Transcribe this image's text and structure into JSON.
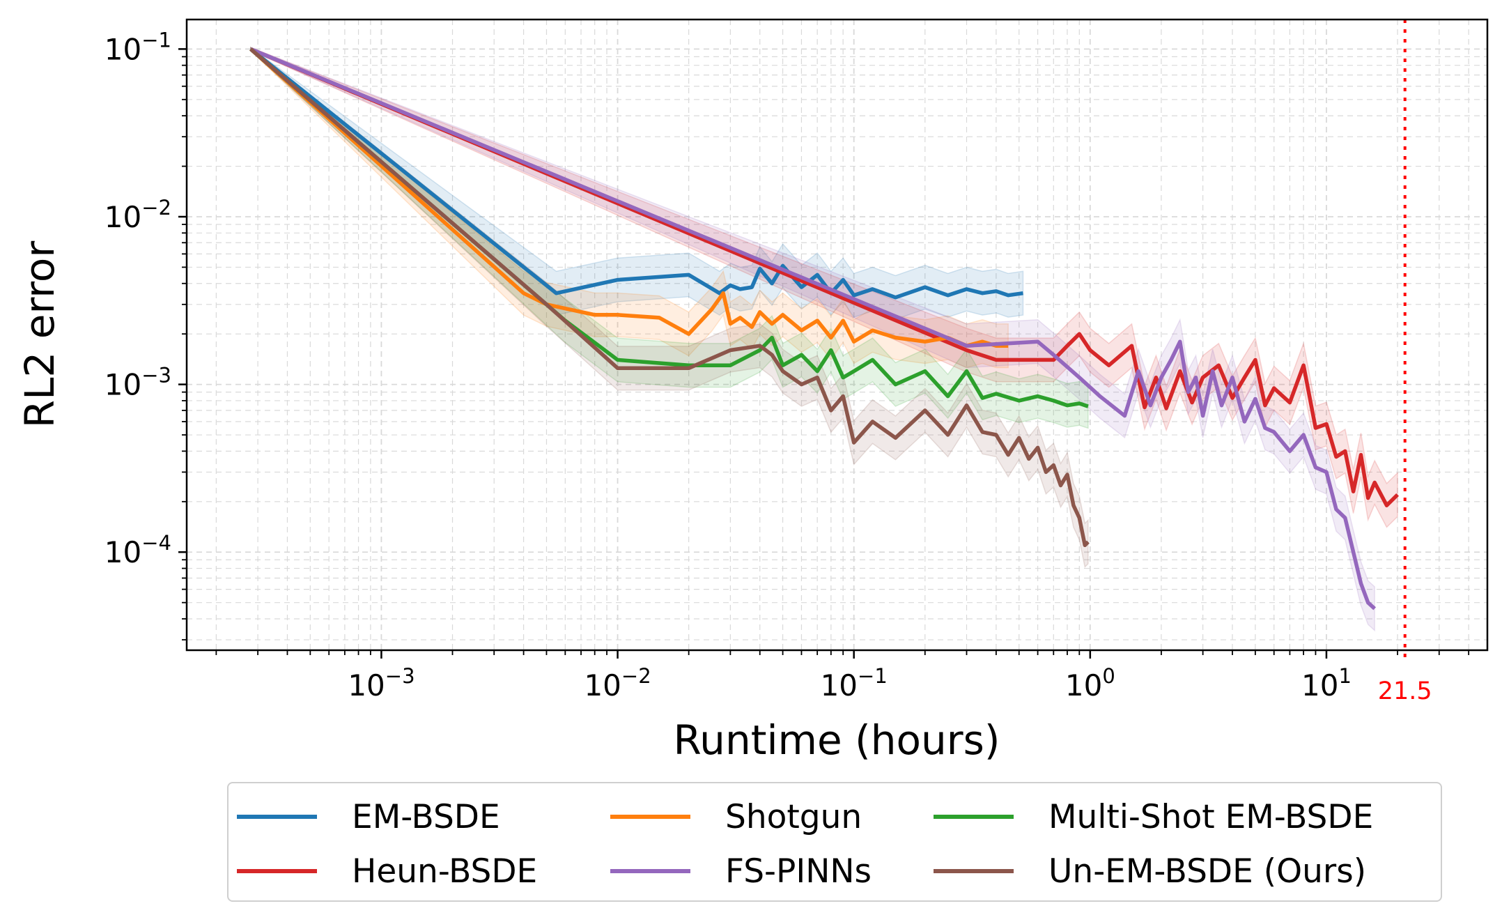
{
  "chart_data": {
    "type": "line",
    "xlabel": "Runtime (hours)",
    "ylabel": "RL2 error",
    "x_scale": "log",
    "y_scale": "log",
    "xlim": [
      0.00015,
      48
    ],
    "ylim": [
      2.6e-05,
      0.15
    ],
    "grid": true,
    "x_ticks": [
      {
        "base": "10",
        "exp": "−3",
        "value": 0.001
      },
      {
        "base": "10",
        "exp": "−2",
        "value": 0.01
      },
      {
        "base": "10",
        "exp": "−1",
        "value": 0.1
      },
      {
        "base": "10",
        "exp": "0",
        "value": 1
      },
      {
        "base": "10",
        "exp": "1",
        "value": 10
      }
    ],
    "y_ticks": [
      {
        "base": "10",
        "exp": "−1",
        "value": 0.1
      },
      {
        "base": "10",
        "exp": "−2",
        "value": 0.01
      },
      {
        "base": "10",
        "exp": "−3",
        "value": 0.001
      },
      {
        "base": "10",
        "exp": "−4",
        "value": 0.0001
      }
    ],
    "reference_line": {
      "x": 21.5,
      "label": "21.5",
      "color": "#ff0000",
      "style": "dotted"
    },
    "legend_position": "bottom",
    "series": [
      {
        "name": "EM-BSDE",
        "color": "#1f77b4",
        "x": [
          0.00028,
          0.0055,
          0.01,
          0.02,
          0.027,
          0.03,
          0.033,
          0.037,
          0.04,
          0.045,
          0.05,
          0.06,
          0.07,
          0.08,
          0.09,
          0.1,
          0.12,
          0.15,
          0.2,
          0.25,
          0.3,
          0.35,
          0.4,
          0.45,
          0.52
        ],
        "y": [
          0.1,
          0.0035,
          0.0042,
          0.0045,
          0.0035,
          0.0039,
          0.0037,
          0.0038,
          0.0049,
          0.004,
          0.0051,
          0.0038,
          0.0045,
          0.0035,
          0.0042,
          0.0034,
          0.0037,
          0.0033,
          0.0038,
          0.0034,
          0.0037,
          0.0035,
          0.0036,
          0.0034,
          0.0035
        ]
      },
      {
        "name": "Heun-BSDE",
        "color": "#d62728",
        "x": [
          0.00028,
          0.3,
          0.4,
          0.5,
          0.6,
          0.7,
          0.8,
          0.9,
          1.0,
          1.2,
          1.5,
          1.7,
          1.9,
          2.1,
          2.4,
          2.7,
          3.0,
          3.5,
          4.0,
          4.5,
          5.0,
          5.5,
          6.0,
          7.0,
          8.0,
          9.0,
          10.0,
          11.0,
          12.0,
          13.0,
          14.0,
          15.0,
          16.0,
          18.0,
          20.0
        ],
        "y": [
          0.1,
          0.0016,
          0.0014,
          0.0014,
          0.0014,
          0.0014,
          0.0017,
          0.002,
          0.0016,
          0.0013,
          0.0017,
          0.00073,
          0.0011,
          0.00072,
          0.0012,
          0.00078,
          0.0011,
          0.0013,
          0.00083,
          0.0011,
          0.0014,
          0.00075,
          0.00095,
          0.00078,
          0.0013,
          0.00055,
          0.00058,
          0.00037,
          0.0004,
          0.00023,
          0.00038,
          0.00021,
          0.00026,
          0.00019,
          0.00022
        ]
      },
      {
        "name": "Shotgun",
        "color": "#ff7f0e",
        "x": [
          0.00028,
          0.004,
          0.005,
          0.008,
          0.01,
          0.015,
          0.02,
          0.025,
          0.028,
          0.03,
          0.033,
          0.037,
          0.04,
          0.045,
          0.05,
          0.06,
          0.07,
          0.08,
          0.09,
          0.1,
          0.12,
          0.15,
          0.2,
          0.25,
          0.3,
          0.35,
          0.4,
          0.45
        ],
        "y": [
          0.1,
          0.0035,
          0.003,
          0.0026,
          0.0026,
          0.0025,
          0.002,
          0.0028,
          0.0035,
          0.0023,
          0.0025,
          0.0022,
          0.0027,
          0.0023,
          0.0026,
          0.0021,
          0.0024,
          0.0019,
          0.0024,
          0.0018,
          0.0021,
          0.0019,
          0.0018,
          0.0019,
          0.0017,
          0.0018,
          0.0017,
          0.0017
        ]
      },
      {
        "name": "FS-PINNs",
        "color": "#9467bd",
        "x": [
          0.00028,
          0.3,
          0.6,
          0.7,
          0.9,
          1.1,
          1.4,
          1.6,
          1.8,
          2.0,
          2.2,
          2.4,
          2.6,
          2.8,
          3.0,
          3.3,
          3.6,
          4.0,
          4.5,
          5.0,
          5.5,
          6.0,
          7.0,
          8.0,
          9.0,
          10.0,
          11.0,
          12.0,
          13.0,
          14.0,
          15.0,
          16.0
        ],
        "y": [
          0.1,
          0.0017,
          0.0018,
          0.0015,
          0.0011,
          0.00085,
          0.00065,
          0.0012,
          0.00075,
          0.0011,
          0.0014,
          0.0018,
          0.0009,
          0.0011,
          0.00065,
          0.0012,
          0.00075,
          0.0011,
          0.0006,
          0.00082,
          0.00055,
          0.00052,
          0.0004,
          0.0005,
          0.00032,
          0.0003,
          0.00018,
          0.00016,
          0.0001,
          6.5e-05,
          5e-05,
          4.6e-05
        ]
      },
      {
        "name": "Multi-Shot EM-BSDE",
        "color": "#2ca02c",
        "x": [
          0.00028,
          0.006,
          0.01,
          0.02,
          0.03,
          0.04,
          0.045,
          0.05,
          0.06,
          0.07,
          0.08,
          0.09,
          0.1,
          0.12,
          0.15,
          0.2,
          0.25,
          0.3,
          0.35,
          0.4,
          0.5,
          0.6,
          0.7,
          0.8,
          0.9,
          0.98
        ],
        "y": [
          0.1,
          0.0024,
          0.0014,
          0.0013,
          0.0013,
          0.0016,
          0.0019,
          0.0013,
          0.0015,
          0.0012,
          0.0016,
          0.0011,
          0.0012,
          0.0014,
          0.001,
          0.0012,
          0.00085,
          0.0012,
          0.00083,
          0.00088,
          0.0008,
          0.00085,
          0.0008,
          0.00075,
          0.00077,
          0.00074
        ]
      },
      {
        "name": "Un-EM-BSDE (Ours)",
        "color": "#8c564b",
        "x": [
          0.00028,
          0.005,
          0.01,
          0.02,
          0.03,
          0.04,
          0.045,
          0.05,
          0.06,
          0.07,
          0.08,
          0.09,
          0.1,
          0.12,
          0.15,
          0.2,
          0.25,
          0.3,
          0.35,
          0.4,
          0.45,
          0.5,
          0.55,
          0.6,
          0.65,
          0.7,
          0.75,
          0.8,
          0.85,
          0.9,
          0.95,
          0.98
        ],
        "y": [
          0.1,
          0.003,
          0.00125,
          0.00125,
          0.0016,
          0.0017,
          0.0015,
          0.0012,
          0.001,
          0.0011,
          0.0007,
          0.00085,
          0.00045,
          0.0006,
          0.00048,
          0.0007,
          0.0005,
          0.00075,
          0.00052,
          0.0005,
          0.00038,
          0.00048,
          0.00036,
          0.00042,
          0.0003,
          0.00033,
          0.00025,
          0.00029,
          0.00019,
          0.00016,
          0.00011,
          0.000115
        ]
      }
    ]
  }
}
